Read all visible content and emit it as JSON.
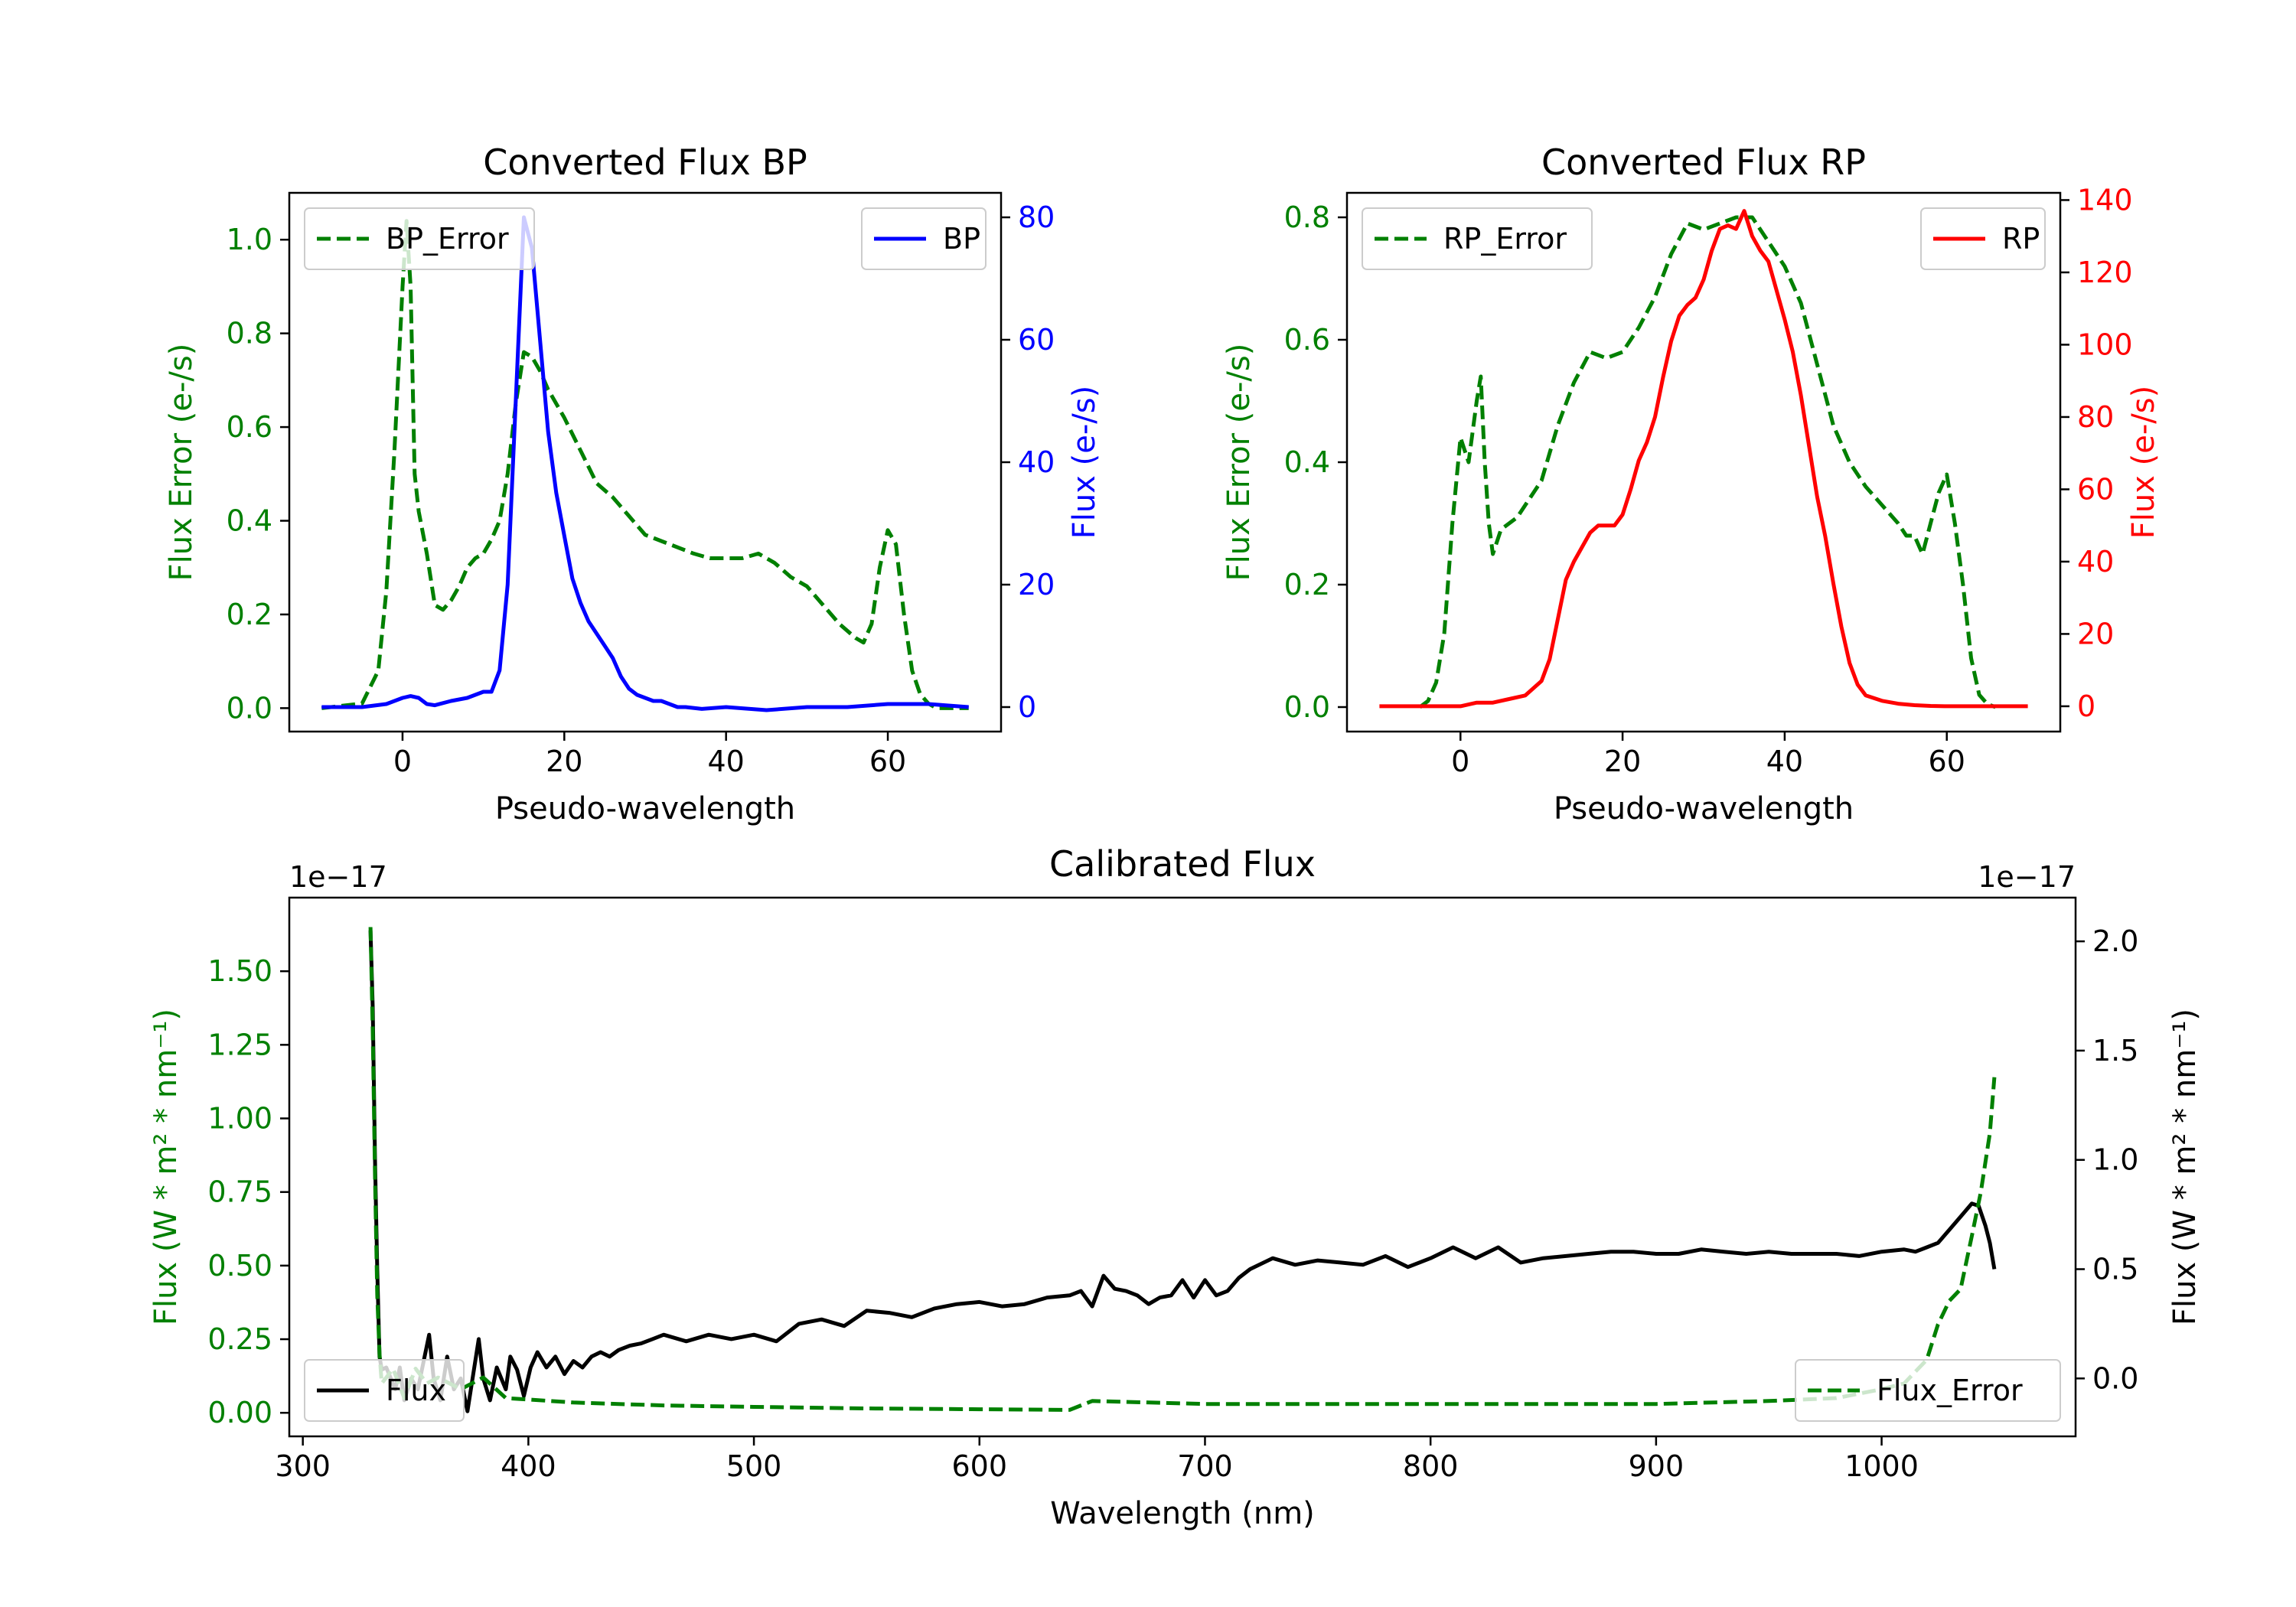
{
  "chart_data": [
    {
      "id": "bp",
      "type": "line",
      "title": "Converted Flux BP",
      "xlabel": "Pseudo-wavelength",
      "ylabel_left": "Flux Error (e-/s)",
      "ylabel_right": "Flux (e-/s)",
      "xlim": [
        -14,
        74
      ],
      "ylim_left": [
        -0.05,
        1.1
      ],
      "ylim_right": [
        -4,
        84
      ],
      "xticks": [
        0,
        20,
        40,
        60
      ],
      "yticks_left": [
        0.0,
        0.2,
        0.4,
        0.6,
        0.8,
        1.0
      ],
      "yticks_right": [
        0,
        20,
        40,
        60,
        80
      ],
      "left_color": "#008000",
      "right_color": "#0000ff",
      "series": [
        {
          "name": "BP_Error",
          "axis": "left",
          "style": "dashed",
          "color": "#008000",
          "legend": "upper left",
          "x": [
            -10,
            -5,
            -3,
            -2,
            -1,
            0,
            0.5,
            1,
            1.5,
            2,
            3,
            4,
            5,
            6,
            7,
            8,
            9,
            10,
            11,
            12,
            13,
            14,
            15,
            16,
            17,
            18,
            19,
            20,
            22,
            24,
            26,
            28,
            30,
            33,
            36,
            38,
            40,
            42,
            44,
            46,
            48,
            50,
            52,
            54,
            56,
            57,
            58,
            59,
            60,
            61,
            62,
            63,
            64,
            65,
            66,
            70
          ],
          "values": [
            0,
            0.01,
            0.08,
            0.25,
            0.55,
            0.9,
            1.04,
            0.9,
            0.5,
            0.42,
            0.33,
            0.22,
            0.21,
            0.23,
            0.26,
            0.3,
            0.32,
            0.33,
            0.36,
            0.4,
            0.5,
            0.65,
            0.76,
            0.75,
            0.72,
            0.68,
            0.65,
            0.62,
            0.55,
            0.48,
            0.45,
            0.41,
            0.37,
            0.35,
            0.33,
            0.32,
            0.32,
            0.32,
            0.33,
            0.31,
            0.28,
            0.26,
            0.22,
            0.18,
            0.15,
            0.14,
            0.18,
            0.3,
            0.38,
            0.35,
            0.2,
            0.08,
            0.03,
            0.01,
            0,
            0
          ]
        },
        {
          "name": "BP",
          "axis": "right",
          "style": "solid",
          "color": "#0000ff",
          "legend": "upper right",
          "x": [
            -10,
            -5,
            -2,
            0,
            1,
            2,
            3,
            4,
            6,
            8,
            10,
            11,
            12,
            13,
            14,
            15,
            16,
            17,
            18,
            19,
            20,
            21,
            22,
            23,
            24,
            25,
            26,
            27,
            28,
            29,
            30,
            31,
            32,
            33,
            34,
            35,
            37,
            40,
            45,
            50,
            55,
            60,
            65,
            70
          ],
          "values": [
            0,
            0,
            0.5,
            1.5,
            1.8,
            1.5,
            0.5,
            0.3,
            1.0,
            1.5,
            2.5,
            2.5,
            6,
            20,
            50,
            80,
            75,
            60,
            45,
            35,
            28,
            21,
            17,
            14,
            12,
            10,
            8,
            5,
            3,
            2,
            1.5,
            1,
            1,
            0.5,
            0,
            0,
            -0.3,
            0,
            -0.5,
            0,
            0,
            0.5,
            0.5,
            0
          ]
        }
      ]
    },
    {
      "id": "rp",
      "type": "line",
      "title": "Converted Flux RP",
      "xlabel": "Pseudo-wavelength",
      "ylabel_left": "Flux Error (e-/s)",
      "ylabel_right": "Flux (e-/s)",
      "xlim": [
        -14,
        74
      ],
      "ylim_left": [
        -0.04,
        0.84
      ],
      "ylim_right": [
        -7,
        142
      ],
      "xticks": [
        0,
        20,
        40,
        60
      ],
      "yticks_left": [
        0.0,
        0.2,
        0.4,
        0.6,
        0.8
      ],
      "yticks_right": [
        0,
        20,
        40,
        60,
        80,
        100,
        120,
        140
      ],
      "left_color": "#008000",
      "right_color": "#ff0000",
      "series": [
        {
          "name": "RP_Error",
          "axis": "left",
          "style": "dashed",
          "color": "#008000",
          "legend": "upper left",
          "x": [
            -5,
            -4,
            -3,
            -2,
            -1,
            0,
            1,
            2,
            2.5,
            3,
            3.5,
            4,
            5,
            6,
            7,
            8,
            9,
            10,
            12,
            14,
            16,
            18,
            20,
            22,
            24,
            26,
            28,
            30,
            32,
            34,
            36,
            38,
            40,
            42,
            44,
            46,
            48,
            50,
            52,
            54,
            55,
            56,
            57,
            58,
            59,
            60,
            61,
            62,
            63,
            64,
            65,
            66
          ],
          "values": [
            0,
            0.01,
            0.04,
            0.12,
            0.3,
            0.44,
            0.4,
            0.5,
            0.54,
            0.4,
            0.3,
            0.25,
            0.29,
            0.3,
            0.31,
            0.33,
            0.35,
            0.37,
            0.46,
            0.53,
            0.58,
            0.57,
            0.58,
            0.62,
            0.67,
            0.74,
            0.79,
            0.78,
            0.79,
            0.8,
            0.8,
            0.76,
            0.72,
            0.66,
            0.56,
            0.46,
            0.4,
            0.36,
            0.33,
            0.3,
            0.28,
            0.28,
            0.25,
            0.3,
            0.35,
            0.38,
            0.3,
            0.2,
            0.08,
            0.02,
            0.005,
            0
          ]
        },
        {
          "name": "RP",
          "axis": "right",
          "style": "solid",
          "color": "#ff0000",
          "legend": "upper right",
          "x": [
            -10,
            0,
            2,
            4,
            6,
            8,
            10,
            11,
            12,
            13,
            14,
            15,
            16,
            17,
            18,
            19,
            20,
            21,
            22,
            23,
            24,
            25,
            26,
            27,
            28,
            29,
            30,
            31,
            32,
            33,
            34,
            35,
            36,
            37,
            38,
            39,
            40,
            41,
            42,
            43,
            44,
            45,
            46,
            47,
            48,
            49,
            50,
            52,
            54,
            56,
            58,
            60,
            65,
            70
          ],
          "values": [
            0,
            0,
            1,
            1,
            2,
            3,
            7,
            13,
            24,
            35,
            40,
            44,
            48,
            50,
            50,
            50,
            53,
            60,
            68,
            73,
            80,
            91,
            101,
            108,
            111,
            113,
            118,
            126,
            132,
            133,
            132,
            137,
            130,
            126,
            123,
            115,
            107,
            98,
            86,
            72,
            58,
            47,
            34,
            22,
            12,
            6,
            3,
            1.5,
            0.7,
            0.3,
            0.1,
            0,
            0,
            0
          ]
        }
      ]
    },
    {
      "id": "calibrated",
      "type": "line",
      "title": "Calibrated Flux",
      "xlabel": "Wavelength (nm)",
      "ylabel_left": "Flux (W * m² * nm⁻¹)",
      "ylabel_right": "Flux (W * m² * nm⁻¹)",
      "offset_left": "1e−17",
      "offset_right": "1e−17",
      "xlim": [
        294,
        1086
      ],
      "ylim_left": [
        -0.08,
        1.75
      ],
      "ylim_right": [
        -0.265,
        2.2
      ],
      "xticks": [
        300,
        400,
        500,
        600,
        700,
        800,
        900,
        1000
      ],
      "yticks_left": [
        0.0,
        0.25,
        0.5,
        0.75,
        1.0,
        1.25,
        1.5
      ],
      "yticks_right": [
        0.0,
        0.5,
        1.0,
        1.5,
        2.0
      ],
      "left_color": "#008000",
      "right_color": "#000000",
      "series": [
        {
          "name": "Flux",
          "axis": "right",
          "style": "solid",
          "color": "#000000",
          "legend": "lower left",
          "x": [
            330,
            331,
            332,
            333,
            334,
            335,
            337,
            339,
            341,
            343,
            345,
            348,
            351,
            354,
            356,
            358,
            361,
            364,
            367,
            370,
            373,
            376,
            378,
            380,
            383,
            386,
            390,
            392,
            395,
            398,
            401,
            404,
            408,
            412,
            416,
            420,
            424,
            428,
            432,
            436,
            440,
            445,
            450,
            455,
            460,
            470,
            480,
            490,
            500,
            510,
            520,
            530,
            540,
            550,
            560,
            570,
            580,
            590,
            600,
            610,
            620,
            630,
            640,
            645,
            650,
            655,
            660,
            665,
            670,
            675,
            680,
            685,
            690,
            695,
            700,
            705,
            710,
            715,
            720,
            730,
            740,
            750,
            760,
            770,
            780,
            790,
            800,
            810,
            820,
            830,
            840,
            850,
            860,
            870,
            880,
            890,
            900,
            910,
            920,
            930,
            940,
            950,
            960,
            970,
            980,
            990,
            1000,
            1010,
            1015,
            1020,
            1025,
            1030,
            1035,
            1040,
            1043,
            1046,
            1048,
            1050
          ],
          "values": [
            2.05,
            1.7,
            1.0,
            0.5,
            0.1,
            0.04,
            0.05,
            0.0,
            -0.05,
            0.05,
            -0.1,
            0.0,
            -0.05,
            0.1,
            0.2,
            0.0,
            -0.1,
            0.1,
            -0.05,
            0.0,
            -0.15,
            0.05,
            0.18,
            0.0,
            -0.1,
            0.05,
            -0.05,
            0.1,
            0.04,
            -0.08,
            0.05,
            0.12,
            0.05,
            0.1,
            0.02,
            0.08,
            0.05,
            0.1,
            0.12,
            0.1,
            0.13,
            0.15,
            0.16,
            0.18,
            0.2,
            0.17,
            0.2,
            0.18,
            0.2,
            0.17,
            0.25,
            0.27,
            0.24,
            0.31,
            0.3,
            0.28,
            0.32,
            0.34,
            0.35,
            0.33,
            0.34,
            0.37,
            0.38,
            0.4,
            0.33,
            0.47,
            0.41,
            0.4,
            0.38,
            0.34,
            0.37,
            0.38,
            0.45,
            0.37,
            0.45,
            0.38,
            0.4,
            0.46,
            0.5,
            0.55,
            0.52,
            0.54,
            0.53,
            0.52,
            0.56,
            0.51,
            0.55,
            0.6,
            0.55,
            0.6,
            0.53,
            0.55,
            0.56,
            0.57,
            0.58,
            0.58,
            0.57,
            0.57,
            0.59,
            0.58,
            0.57,
            0.58,
            0.57,
            0.57,
            0.57,
            0.56,
            0.58,
            0.59,
            0.58,
            0.6,
            0.62,
            0.68,
            0.74,
            0.8,
            0.79,
            0.7,
            0.62,
            0.5
          ]
        },
        {
          "name": "Flux_Error",
          "axis": "left",
          "style": "dashed",
          "color": "#008000",
          "legend": "lower right",
          "x": [
            330,
            331,
            332,
            333,
            334,
            335,
            337,
            340,
            345,
            350,
            355,
            360,
            370,
            380,
            390,
            400,
            410,
            420,
            440,
            460,
            500,
            550,
            600,
            640,
            650,
            700,
            800,
            900,
            950,
            980,
            1000,
            1010,
            1020,
            1025,
            1030,
            1035,
            1040,
            1044,
            1048,
            1050
          ],
          "values": [
            1.65,
            1.3,
            0.8,
            0.4,
            0.2,
            0.1,
            0.12,
            0.15,
            0.05,
            0.15,
            0.1,
            0.12,
            0.08,
            0.12,
            0.05,
            0.045,
            0.04,
            0.035,
            0.03,
            0.025,
            0.02,
            0.015,
            0.012,
            0.01,
            0.04,
            0.03,
            0.03,
            0.03,
            0.04,
            0.05,
            0.08,
            0.1,
            0.18,
            0.3,
            0.38,
            0.42,
            0.6,
            0.75,
            0.95,
            1.14
          ]
        }
      ]
    }
  ]
}
